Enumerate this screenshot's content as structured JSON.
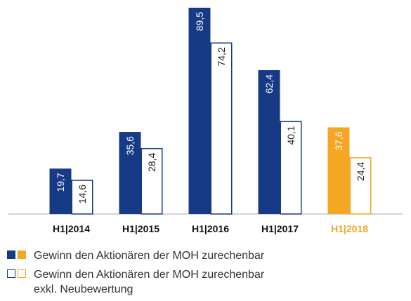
{
  "chart_data": {
    "type": "bar",
    "categories": [
      "H1|2014",
      "H1|2015",
      "H1|2016",
      "H1|2017",
      "H1|2018"
    ],
    "series": [
      {
        "name": "Gewinn den Aktionären der MOH zurechenbar",
        "style": "filled",
        "colors": [
          "#173a86",
          "#173a86",
          "#173a86",
          "#173a86",
          "#f5a623"
        ],
        "values": [
          19.7,
          35.6,
          89.5,
          62.4,
          37.6
        ],
        "value_labels": [
          "19,7",
          "35,6",
          "89,5",
          "62,4",
          "37,6"
        ]
      },
      {
        "name": "Gewinn den Aktionären der MOH zurechenbar exkl. Neubewertung",
        "style": "outline",
        "colors": [
          "#173a86",
          "#173a86",
          "#173a86",
          "#173a86",
          "#f5a623"
        ],
        "values": [
          14.6,
          28.4,
          74.2,
          40.1,
          24.4
        ],
        "value_labels": [
          "14,6",
          "28,4",
          "74,2",
          "40,1",
          "24,4"
        ]
      }
    ]
  }
}
